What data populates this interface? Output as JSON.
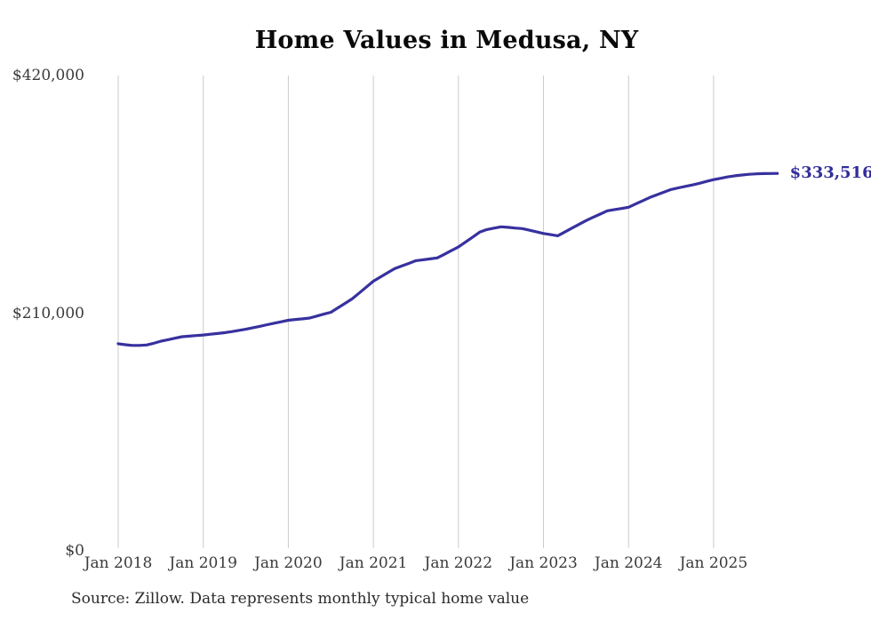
{
  "chart_data": {
    "type": "line",
    "title": "Home Values in Medusa, NY",
    "source": "Source: Zillow. Data represents monthly typical home value",
    "end_label": "$333,516",
    "latest_value": 333516,
    "xlabel": "",
    "ylabel": "",
    "x_tick_labels": [
      "Jan 2018",
      "Jan 2019",
      "Jan 2020",
      "Jan 2021",
      "Jan 2022",
      "Jan 2023",
      "Jan 2024",
      "Jan 2025"
    ],
    "y_ticks": [
      {
        "label": "$0",
        "value": 0
      },
      {
        "label": "$210,000",
        "value": 210000
      },
      {
        "label": "$420,000",
        "value": 420000
      }
    ],
    "ylim": [
      0,
      420000
    ],
    "grid": "vertical-year-gridlines-only",
    "legend_position": "none",
    "series": [
      {
        "name": "Typical home value",
        "frequency": "monthly",
        "start_month": "2018-01",
        "end_month": "2025-10",
        "values": [
          183000,
          182100,
          181500,
          181500,
          181900,
          183400,
          185200,
          186500,
          187900,
          189200,
          189700,
          190200,
          190700,
          191400,
          192000,
          192700,
          193700,
          194800,
          195800,
          197100,
          198400,
          199800,
          201100,
          202400,
          203700,
          204400,
          205000,
          205700,
          207400,
          209100,
          210800,
          214700,
          218600,
          222600,
          227800,
          233000,
          238300,
          242000,
          245700,
          249300,
          251700,
          254000,
          256400,
          257200,
          258000,
          258800,
          262000,
          265300,
          268600,
          272900,
          277200,
          281600,
          283900,
          285100,
          286300,
          285800,
          285200,
          284700,
          283300,
          281900,
          280400,
          279400,
          278400,
          281700,
          285100,
          288400,
          291800,
          294700,
          297500,
          300400,
          301500,
          302500,
          303600,
          306500,
          309400,
          312200,
          314600,
          317000,
          319300,
          320700,
          322000,
          323300,
          324800,
          326400,
          328000,
          329200,
          330400,
          331400,
          332100,
          332700,
          333100,
          333300,
          333400,
          333516
        ]
      }
    ],
    "colors": {
      "line": "#37319f",
      "end_label": "#322d9b",
      "grid": "#cbcbcb",
      "tick_text": "#3a3a3a",
      "title_text": "#0a0a0a",
      "source_text": "#2b2b2b",
      "background": "#ffffff"
    }
  }
}
